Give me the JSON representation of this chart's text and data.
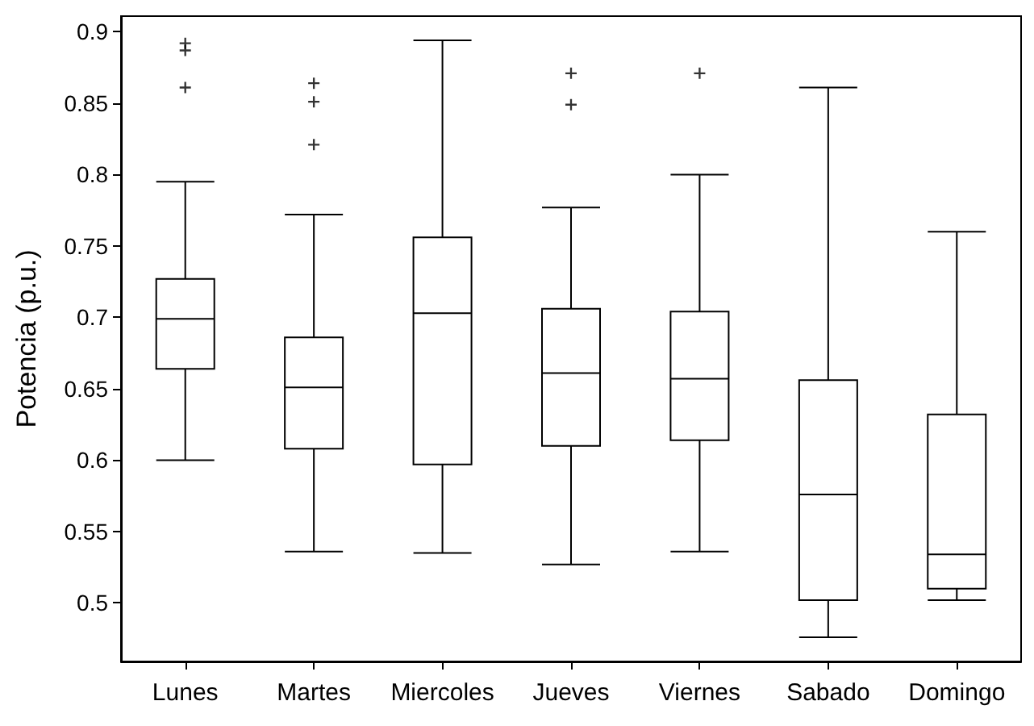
{
  "chart_data": {
    "type": "box",
    "ylabel": "Potencia (p.u.)",
    "categories": [
      "Lunes",
      "Martes",
      "Miercoles",
      "Jueves",
      "Viernes",
      "Sabado",
      "Domingo"
    ],
    "boxes": [
      {
        "low": 0.6,
        "q1": 0.664,
        "median": 0.699,
        "q3": 0.727,
        "high": 0.795,
        "outliers": [
          0.892,
          0.887,
          0.861
        ]
      },
      {
        "low": 0.536,
        "q1": 0.608,
        "median": 0.651,
        "q3": 0.686,
        "high": 0.772,
        "outliers": [
          0.864,
          0.851,
          0.821
        ]
      },
      {
        "low": 0.535,
        "q1": 0.597,
        "median": 0.703,
        "q3": 0.756,
        "high": 0.894
      },
      {
        "low": 0.527,
        "q1": 0.61,
        "median": 0.661,
        "q3": 0.706,
        "high": 0.777,
        "outliers": [
          0.871,
          0.849
        ]
      },
      {
        "low": 0.536,
        "q1": 0.614,
        "median": 0.657,
        "q3": 0.704,
        "high": 0.8,
        "outliers": [
          0.871
        ]
      },
      {
        "low": 0.476,
        "q1": 0.502,
        "median": 0.576,
        "q3": 0.656,
        "high": 0.861
      },
      {
        "low": 0.502,
        "q1": 0.51,
        "median": 0.534,
        "q3": 0.632,
        "high": 0.76
      }
    ],
    "color": "#000000",
    "ylim": [
      0.459,
      0.911
    ],
    "yticks": [
      0.5,
      0.55,
      0.6,
      0.65,
      0.7,
      0.75,
      0.8,
      0.85,
      0.9
    ],
    "grid": false,
    "marker": "cross"
  }
}
